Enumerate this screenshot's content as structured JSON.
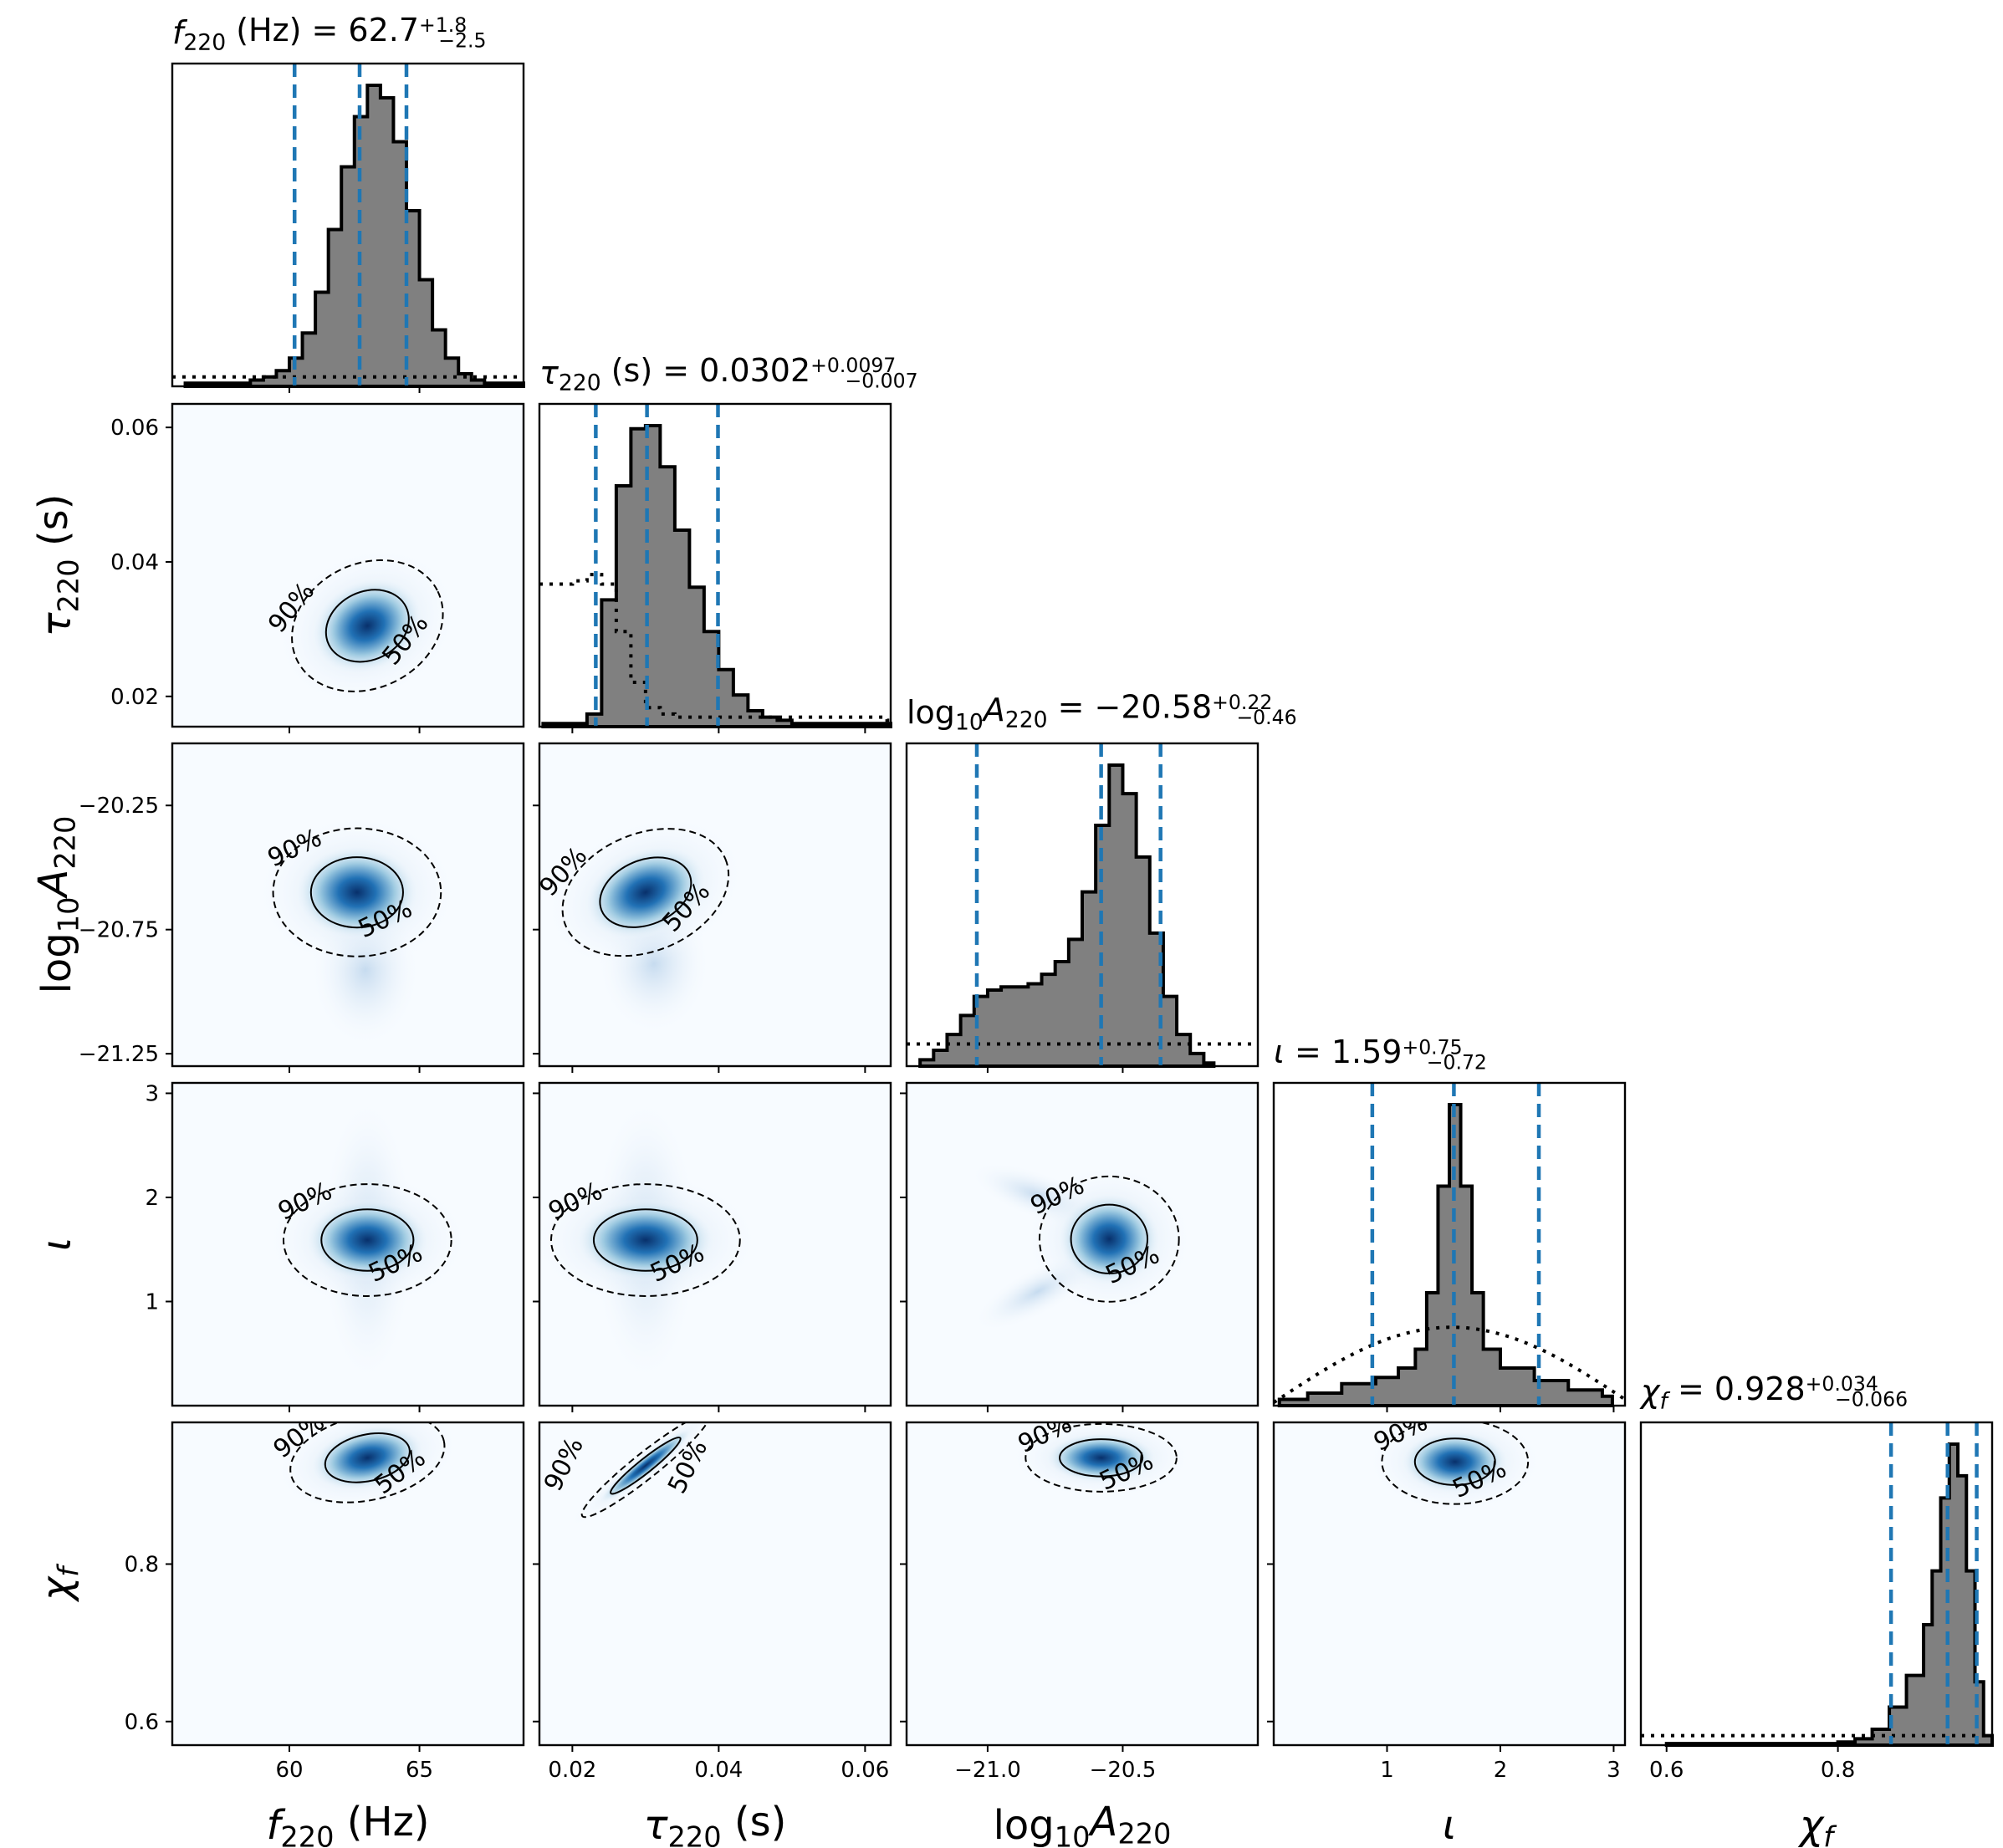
{
  "chart_data": {
    "type": "corner",
    "parameters": [
      {
        "key": "f220",
        "axis_label": "f220 (Hz)",
        "title": "f220 (Hz) = 62.7 +1.8 −2.5",
        "median": 62.7,
        "plus": 1.8,
        "minus": 2.5,
        "range": [
          55.5,
          69.0
        ],
        "ticks": [
          60,
          65
        ],
        "tick_labels": [
          "60",
          "65"
        ]
      },
      {
        "key": "tau220",
        "axis_label": "τ220 (s)",
        "title": "τ220 (s) = 0.0302 +0.0097 −0.0070",
        "median": 0.0302,
        "plus": 0.0097,
        "minus": 0.007,
        "range": [
          0.0155,
          0.0635
        ],
        "ticks": [
          0.02,
          0.04,
          0.06
        ],
        "tick_labels": [
          "0.02",
          "0.04",
          "0.06"
        ]
      },
      {
        "key": "log10A220",
        "axis_label": "log10A220",
        "title": "log10A220 = −20.58 +0.22 −0.46",
        "median": -20.58,
        "plus": 0.22,
        "minus": 0.46,
        "range": [
          -21.3,
          -20.0
        ],
        "ticks": [
          -21.25,
          -20.75,
          -20.25
        ],
        "tick_labels": [
          "−21.25",
          "−20.75",
          "−20.25"
        ],
        "xticks": [
          -21.0,
          -20.5
        ],
        "xtick_labels": [
          "−21.0",
          "−20.5"
        ]
      },
      {
        "key": "iota",
        "axis_label": "ι",
        "title": "ι = 1.59 +0.75 −0.72",
        "median": 1.59,
        "plus": 0.75,
        "minus": 0.72,
        "range": [
          0.0,
          3.1
        ],
        "ticks": [
          1,
          2,
          3
        ],
        "tick_labels": [
          "1",
          "2",
          "3"
        ]
      },
      {
        "key": "chif",
        "axis_label": "χf",
        "title": "χf = 0.928 +0.034 −0.066",
        "median": 0.928,
        "plus": 0.034,
        "minus": 0.066,
        "range": [
          0.57,
          0.98
        ],
        "ticks": [
          0.6,
          0.8
        ],
        "tick_labels": [
          "0.6",
          "0.8"
        ]
      }
    ],
    "contour_levels": [
      "50%",
      "90%"
    ],
    "posterior_histograms": [
      {
        "param": "f220",
        "bins": [
          [
            56.0,
            1
          ],
          [
            58.0,
            1
          ],
          [
            58.5,
            2
          ],
          [
            59.0,
            3
          ],
          [
            59.5,
            5
          ],
          [
            60.0,
            9
          ],
          [
            60.5,
            17
          ],
          [
            61.0,
            30
          ],
          [
            61.5,
            50
          ],
          [
            62.0,
            70
          ],
          [
            62.5,
            86
          ],
          [
            63.0,
            96
          ],
          [
            63.5,
            92
          ],
          [
            64.0,
            78
          ],
          [
            64.5,
            56
          ],
          [
            65.0,
            34
          ],
          [
            65.5,
            18
          ],
          [
            66.0,
            9
          ],
          [
            66.5,
            4
          ],
          [
            67.0,
            2
          ],
          [
            67.5,
            1
          ],
          [
            69.0,
            1
          ]
        ],
        "prior_level": 3
      },
      {
        "param": "tau220",
        "bins": [
          [
            0.016,
            1
          ],
          [
            0.02,
            1
          ],
          [
            0.022,
            4
          ],
          [
            0.024,
            40
          ],
          [
            0.026,
            76
          ],
          [
            0.028,
            94
          ],
          [
            0.03,
            95
          ],
          [
            0.032,
            82
          ],
          [
            0.034,
            62
          ],
          [
            0.036,
            44
          ],
          [
            0.038,
            30
          ],
          [
            0.04,
            18
          ],
          [
            0.042,
            10
          ],
          [
            0.044,
            5
          ],
          [
            0.046,
            3
          ],
          [
            0.048,
            2
          ],
          [
            0.05,
            1
          ],
          [
            0.063,
            1
          ]
        ],
        "prior_steps": [
          [
            0.016,
            45
          ],
          [
            0.02,
            46
          ],
          [
            0.022,
            48
          ],
          [
            0.024,
            45
          ],
          [
            0.026,
            30
          ],
          [
            0.028,
            14
          ],
          [
            0.03,
            6
          ],
          [
            0.032,
            4
          ],
          [
            0.034,
            3
          ],
          [
            0.063,
            2
          ]
        ]
      },
      {
        "param": "log10A220",
        "bins": [
          [
            -21.25,
            2
          ],
          [
            -21.2,
            5
          ],
          [
            -21.15,
            10
          ],
          [
            -21.1,
            16
          ],
          [
            -21.05,
            22
          ],
          [
            -21.0,
            24
          ],
          [
            -20.95,
            25
          ],
          [
            -20.9,
            25
          ],
          [
            -20.85,
            26
          ],
          [
            -20.8,
            29
          ],
          [
            -20.75,
            33
          ],
          [
            -20.7,
            40
          ],
          [
            -20.65,
            55
          ],
          [
            -20.6,
            76
          ],
          [
            -20.55,
            95
          ],
          [
            -20.5,
            86
          ],
          [
            -20.45,
            66
          ],
          [
            -20.4,
            42
          ],
          [
            -20.35,
            22
          ],
          [
            -20.3,
            10
          ],
          [
            -20.25,
            4
          ],
          [
            -20.2,
            1
          ]
        ],
        "prior_level": 7
      },
      {
        "param": "iota",
        "bins": [
          [
            0.05,
            2
          ],
          [
            0.3,
            4
          ],
          [
            0.6,
            7
          ],
          [
            0.9,
            9
          ],
          [
            1.1,
            12
          ],
          [
            1.25,
            18
          ],
          [
            1.35,
            36
          ],
          [
            1.45,
            70
          ],
          [
            1.55,
            96
          ],
          [
            1.65,
            70
          ],
          [
            1.75,
            36
          ],
          [
            1.85,
            18
          ],
          [
            2.0,
            12
          ],
          [
            2.3,
            8
          ],
          [
            2.6,
            5
          ],
          [
            2.9,
            3
          ]
        ],
        "prior_shape": "sin"
      },
      {
        "param": "chif",
        "bins": [
          [
            0.6,
            0.5
          ],
          [
            0.8,
            1
          ],
          [
            0.82,
            2
          ],
          [
            0.84,
            5
          ],
          [
            0.86,
            12
          ],
          [
            0.88,
            22
          ],
          [
            0.9,
            38
          ],
          [
            0.91,
            55
          ],
          [
            0.92,
            78
          ],
          [
            0.93,
            95
          ],
          [
            0.94,
            85
          ],
          [
            0.95,
            55
          ],
          [
            0.96,
            20
          ],
          [
            0.97,
            3
          ]
        ],
        "prior_level": 3
      }
    ],
    "pair_posteriors": [
      {
        "x": "f220",
        "y": "tau220",
        "mean": [
          63.0,
          0.0305
        ],
        "sd": [
          1.4,
          0.0043
        ],
        "rho": 0.3,
        "label_90": "90%",
        "label_50": "50%"
      },
      {
        "x": "f220",
        "y": "log10A220",
        "mean": [
          62.6,
          -20.6
        ],
        "sd": [
          1.5,
          0.12
        ],
        "rho": 0.0,
        "tail": "down",
        "label_90": "90%",
        "label_50": "50%"
      },
      {
        "x": "tau220",
        "y": "log10A220",
        "mean": [
          0.03,
          -20.6
        ],
        "sd": [
          0.0055,
          0.11
        ],
        "rho": 0.4,
        "tail": "down",
        "label_90": "90%",
        "label_50": "50%"
      },
      {
        "x": "f220",
        "y": "iota",
        "mean": [
          63.0,
          1.59
        ],
        "sd": [
          1.5,
          0.25
        ],
        "rho": 0.0,
        "tail": "vertical",
        "label_90": "90%",
        "label_50": "50%"
      },
      {
        "x": "tau220",
        "y": "iota",
        "mean": [
          0.03,
          1.59
        ],
        "sd": [
          0.006,
          0.25
        ],
        "rho": 0.0,
        "tail": "vertical",
        "label_90": "90%",
        "label_50": "50%"
      },
      {
        "x": "log10A220",
        "y": "iota",
        "mean": [
          -20.55,
          1.6
        ],
        "sd": [
          0.12,
          0.28
        ],
        "rho": 0.0,
        "tail": "v-shape",
        "label_90": "90%",
        "label_50": "50%"
      },
      {
        "x": "f220",
        "y": "chif",
        "mean": [
          63.0,
          0.935
        ],
        "sd": [
          1.4,
          0.025
        ],
        "rho": 0.3,
        "label_90": "90%",
        "label_50": "50%"
      },
      {
        "x": "tau220",
        "y": "chif",
        "mean": [
          0.03,
          0.925
        ],
        "sd": [
          0.004,
          0.03
        ],
        "rho": 0.95,
        "label_90": "90%",
        "label_50": "50%"
      },
      {
        "x": "log10A220",
        "y": "chif",
        "mean": [
          -20.58,
          0.935
        ],
        "sd": [
          0.13,
          0.02
        ],
        "rho": 0.0,
        "label_90": "90%",
        "label_50": "50%"
      },
      {
        "x": "iota",
        "y": "chif",
        "mean": [
          1.6,
          0.93
        ],
        "sd": [
          0.3,
          0.025
        ],
        "rho": 0.0,
        "label_90": "90%",
        "label_50": "50%"
      }
    ],
    "colors": {
      "histogram_fill": "#808080",
      "histogram_edge": "#000000",
      "quantile_line": "#1f77b4",
      "density_high": "#08306b",
      "density_mid": "#2171b5",
      "density_low": "#f7fbff"
    },
    "grid": false
  }
}
